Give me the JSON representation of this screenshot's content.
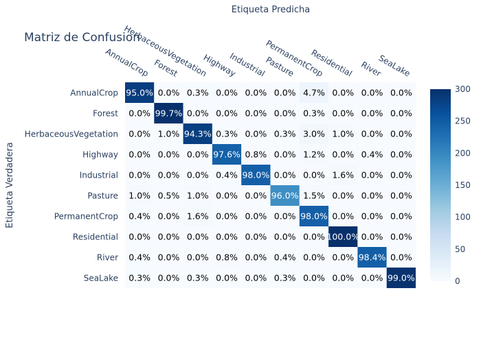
{
  "chart_data": {
    "type": "heatmap",
    "title": "Matriz de Confusion",
    "xlabel": "Etiqueta Predicha",
    "ylabel": "Etiqueta Verdadera",
    "x_categories": [
      "AnnualCrop",
      "Forest",
      "HerbaceousVegetation",
      "Highway",
      "Industrial",
      "Pasture",
      "PermanentCrop",
      "Residential",
      "River",
      "SeaLake"
    ],
    "y_categories": [
      "AnnualCrop",
      "Forest",
      "HerbaceousVegetation",
      "Highway",
      "Industrial",
      "Pasture",
      "PermanentCrop",
      "Residential",
      "River",
      "SeaLake"
    ],
    "cell_labels": [
      [
        "95.0%",
        "0.0%",
        "0.3%",
        "0.0%",
        "0.0%",
        "0.0%",
        "4.7%",
        "0.0%",
        "0.0%",
        "0.0%"
      ],
      [
        "0.0%",
        "99.7%",
        "0.0%",
        "0.0%",
        "0.0%",
        "0.0%",
        "0.3%",
        "0.0%",
        "0.0%",
        "0.0%"
      ],
      [
        "0.0%",
        "1.0%",
        "94.3%",
        "0.3%",
        "0.0%",
        "0.3%",
        "3.0%",
        "1.0%",
        "0.0%",
        "0.0%"
      ],
      [
        "0.0%",
        "0.0%",
        "0.0%",
        "97.6%",
        "0.8%",
        "0.0%",
        "1.2%",
        "0.0%",
        "0.4%",
        "0.0%"
      ],
      [
        "0.0%",
        "0.0%",
        "0.0%",
        "0.4%",
        "98.0%",
        "0.0%",
        "0.0%",
        "1.6%",
        "0.0%",
        "0.0%"
      ],
      [
        "1.0%",
        "0.5%",
        "1.0%",
        "0.0%",
        "0.0%",
        "96.0%",
        "1.5%",
        "0.0%",
        "0.0%",
        "0.0%"
      ],
      [
        "0.4%",
        "0.0%",
        "1.6%",
        "0.0%",
        "0.0%",
        "0.0%",
        "98.0%",
        "0.0%",
        "0.0%",
        "0.0%"
      ],
      [
        "0.0%",
        "0.0%",
        "0.0%",
        "0.0%",
        "0.0%",
        "0.0%",
        "0.0%",
        "100.0%",
        "0.0%",
        "0.0%"
      ],
      [
        "0.4%",
        "0.0%",
        "0.0%",
        "0.8%",
        "0.0%",
        "0.4%",
        "0.0%",
        "0.0%",
        "98.4%",
        "0.0%"
      ],
      [
        "0.3%",
        "0.0%",
        "0.3%",
        "0.0%",
        "0.0%",
        "0.3%",
        "0.0%",
        "0.0%",
        "0.0%",
        "99.0%"
      ]
    ],
    "counts": [
      [
        285,
        0,
        1,
        0,
        0,
        0,
        14,
        0,
        0,
        0
      ],
      [
        0,
        299,
        0,
        0,
        0,
        0,
        1,
        0,
        0,
        0
      ],
      [
        0,
        3,
        283,
        1,
        0,
        1,
        9,
        3,
        0,
        0
      ],
      [
        0,
        0,
        0,
        244,
        2,
        0,
        3,
        0,
        1,
        0
      ],
      [
        0,
        0,
        0,
        1,
        245,
        0,
        0,
        4,
        0,
        0
      ],
      [
        2,
        1,
        2,
        0,
        0,
        192,
        3,
        0,
        0,
        0
      ],
      [
        1,
        0,
        4,
        0,
        0,
        0,
        245,
        0,
        0,
        0
      ],
      [
        0,
        0,
        0,
        0,
        0,
        0,
        0,
        300,
        0,
        0
      ],
      [
        1,
        0,
        0,
        2,
        0,
        1,
        0,
        0,
        246,
        0
      ],
      [
        1,
        0,
        1,
        0,
        0,
        1,
        0,
        0,
        0,
        297
      ]
    ],
    "colorscale": "Blues",
    "colorscale_stops": [
      "#f7fbff",
      "#deebf7",
      "#c6dbef",
      "#9ecae1",
      "#6baed6",
      "#4292c6",
      "#2171b5",
      "#08519c",
      "#08306b"
    ],
    "zlim": [
      0,
      300
    ],
    "colorbar_ticks": [
      0,
      50,
      100,
      150,
      200,
      250,
      300
    ],
    "x_axis_side": "top"
  }
}
